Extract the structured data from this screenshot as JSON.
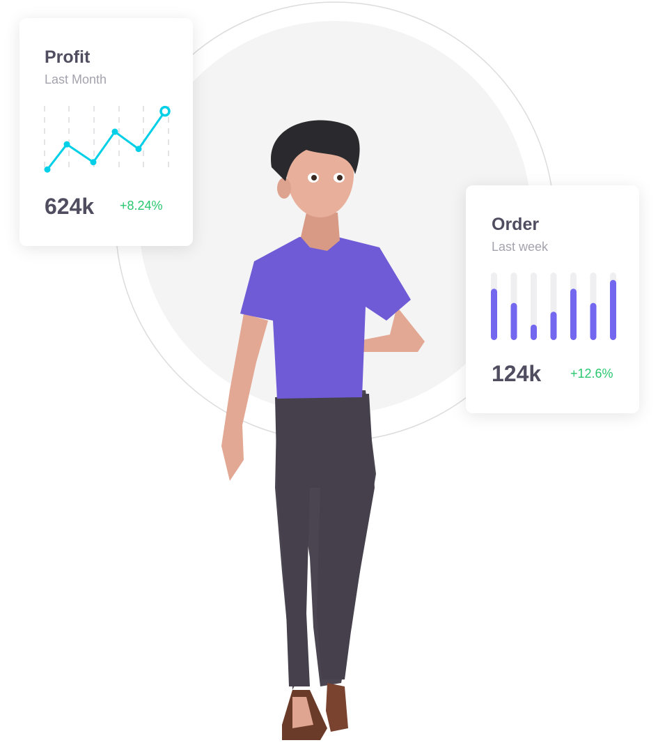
{
  "colors": {
    "line": "#00cfe8",
    "bar": "#7367f0",
    "track": "#efeff1",
    "positive": "#28c76f",
    "text": "#4f4d5f",
    "muted": "#a4a3ad"
  },
  "profit_card": {
    "title": "Profit",
    "subtitle": "Last Month",
    "value": "624k",
    "change": "+8.24%"
  },
  "order_card": {
    "title": "Order",
    "subtitle": "Last week",
    "value": "124k",
    "change": "+12.6%"
  },
  "chart_data": [
    {
      "type": "line",
      "values": [
        4,
        42,
        15,
        61,
        35,
        92
      ],
      "ylim": [
        0,
        100
      ],
      "grid": "vertical dashed"
    },
    {
      "type": "bar",
      "values": [
        0.76,
        0.55,
        0.23,
        0.42,
        0.76,
        0.55,
        0.89
      ],
      "ylim": [
        0,
        1
      ]
    }
  ],
  "illustration": {
    "subject": "3d-character-thumbs-up"
  }
}
